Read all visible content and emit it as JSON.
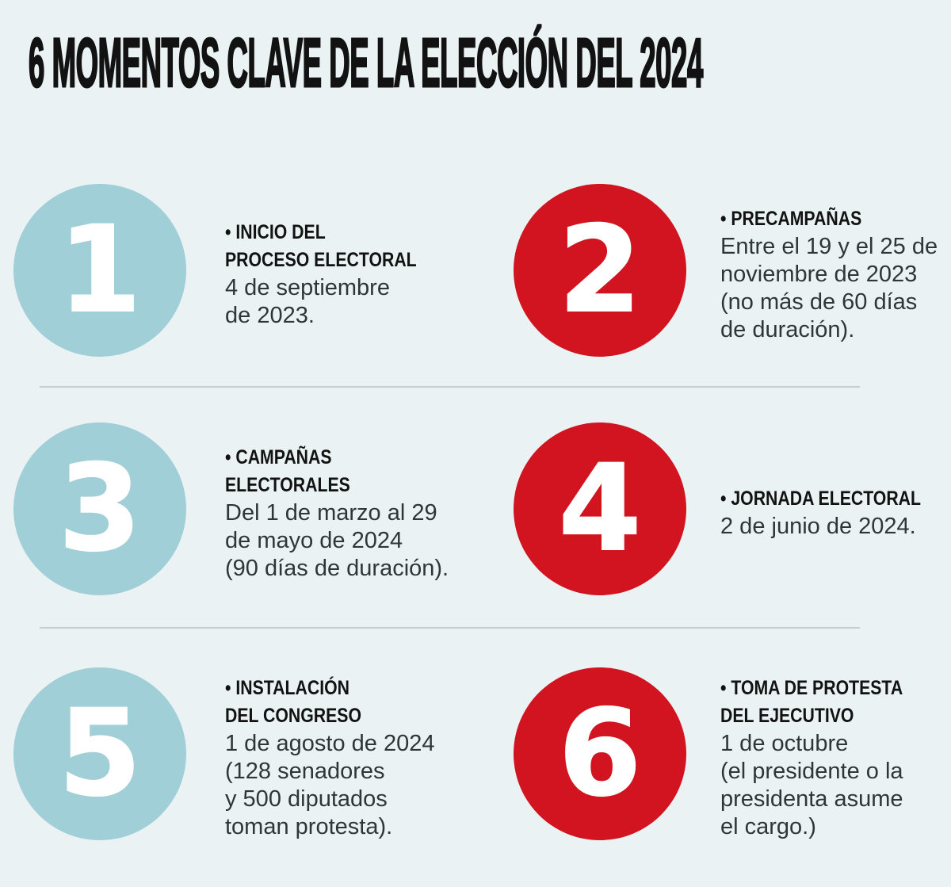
{
  "title": "6 MOMENTOS CLAVE DE LA ELECCIÓN DEL 2024",
  "colors": {
    "bg": "#ebf2f3",
    "teal": "#a1cfd8",
    "red": "#d11420",
    "ink": "#121212",
    "body-ink": "#2f3638",
    "divider": "#c7cdce"
  },
  "items": [
    {
      "number": "1",
      "circle_color": "teal",
      "heading_lines": [
        "• INICIO DEL",
        "PROCESO ELECTORAL"
      ],
      "body_lines": [
        "4 de septiembre",
        "de 2023."
      ]
    },
    {
      "number": "2",
      "circle_color": "red",
      "heading_lines": [
        "• PRECAMPAÑAS"
      ],
      "body_lines": [
        "Entre el 19 y el 25 de",
        "noviembre de 2023",
        "(no más de 60 días",
        "de duración)."
      ]
    },
    {
      "number": "3",
      "circle_color": "teal",
      "heading_lines": [
        "• CAMPAÑAS",
        "ELECTORALES"
      ],
      "body_lines": [
        "Del 1 de marzo al 29",
        "de mayo de 2024",
        "(90 días de duración)."
      ]
    },
    {
      "number": "4",
      "circle_color": "red",
      "heading_lines": [
        "• JORNADA ELECTORAL"
      ],
      "body_lines": [
        "2 de junio de 2024."
      ]
    },
    {
      "number": "5",
      "circle_color": "teal",
      "heading_lines": [
        "• INSTALACIÓN",
        "DEL CONGRESO"
      ],
      "body_lines": [
        "1 de agosto de 2024",
        "(128 senadores",
        "y 500 diputados",
        "toman protesta)."
      ]
    },
    {
      "number": "6",
      "circle_color": "red",
      "heading_lines": [
        "• TOMA DE PROTESTA",
        "DEL EJECUTIVO"
      ],
      "body_lines": [
        "1 de octubre",
        "(el presidente o la",
        "presidenta asume",
        "el cargo.)"
      ]
    }
  ]
}
